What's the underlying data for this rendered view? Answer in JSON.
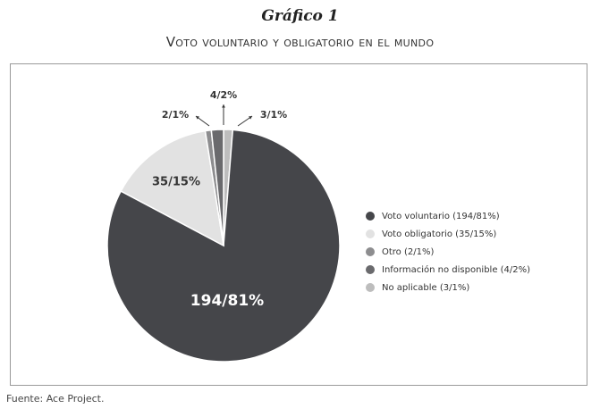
{
  "figure": {
    "title": "Gráfico 1",
    "subtitle": "Voto voluntario y obligatorio en el mundo",
    "source": "Fuente: Ace Project."
  },
  "chart_data": {
    "type": "pie",
    "title": "Voto voluntario y obligatorio en el mundo",
    "slices": [
      {
        "name": "Voto voluntario",
        "value": 194,
        "percent": 81,
        "label": "194/81%",
        "legend": "Voto voluntario (194/81%)",
        "color": "#45464a",
        "label_color": "#ffffff"
      },
      {
        "name": "Voto obligatorio",
        "value": 35,
        "percent": 15,
        "label": "35/15%",
        "legend": "Voto obligatorio (35/15%)",
        "color": "#e2e2e2",
        "label_color": "#333333"
      },
      {
        "name": "Otro",
        "value": 2,
        "percent": 1,
        "label": "2/1%",
        "legend": "Otro (2/1%)",
        "color": "#8d8d8f",
        "label_color": "#333333"
      },
      {
        "name": "Información no disponible",
        "value": 4,
        "percent": 2,
        "label": "4/2%",
        "legend": "Información no disponible (4/2%)",
        "color": "#6a6a6d",
        "label_color": "#333333"
      },
      {
        "name": "No aplicable",
        "value": 3,
        "percent": 1,
        "label": "3/1%",
        "legend": "No aplicable (3/1%)",
        "color": "#bdbdbd",
        "label_color": "#333333"
      }
    ],
    "legend_position": "right"
  }
}
